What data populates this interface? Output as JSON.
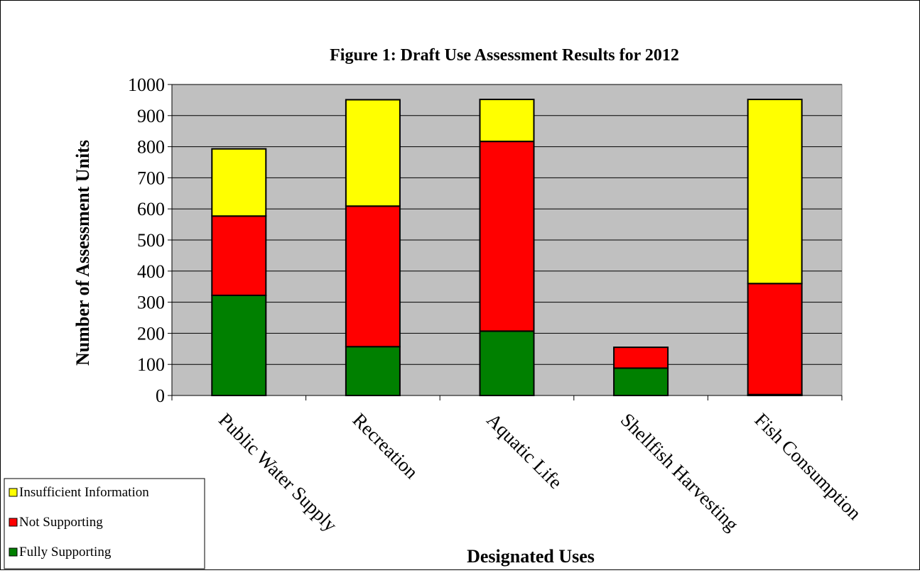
{
  "chart_data": {
    "type": "bar",
    "stacked": true,
    "title": "Figure 1: Draft Use Assessment Results for 2012",
    "xlabel": "Designated Uses",
    "ylabel": "Number of Assessment Units",
    "ylim": [
      0,
      1000
    ],
    "yticks": [
      0,
      100,
      200,
      300,
      400,
      500,
      600,
      700,
      800,
      900,
      1000
    ],
    "categories": [
      "Public Water Supply",
      "Recreation",
      "Aquatic Life",
      "Shellfish Harvesting",
      "Fish Consumption"
    ],
    "series": [
      {
        "name": "Fully Supporting",
        "color": "#008000",
        "values": [
          322,
          157,
          207,
          88,
          3
        ]
      },
      {
        "name": "Not Supporting",
        "color": "#ff0000",
        "values": [
          255,
          452,
          610,
          67,
          357
        ]
      },
      {
        "name": "Insufficient Information",
        "color": "#ffff00",
        "values": [
          216,
          342,
          135,
          0,
          592
        ]
      }
    ],
    "plot_background": "#c0c0c0",
    "grid": true,
    "legend_position": "bottom-left",
    "legend_order": [
      "Insufficient Information",
      "Not Supporting",
      "Fully Supporting"
    ]
  }
}
